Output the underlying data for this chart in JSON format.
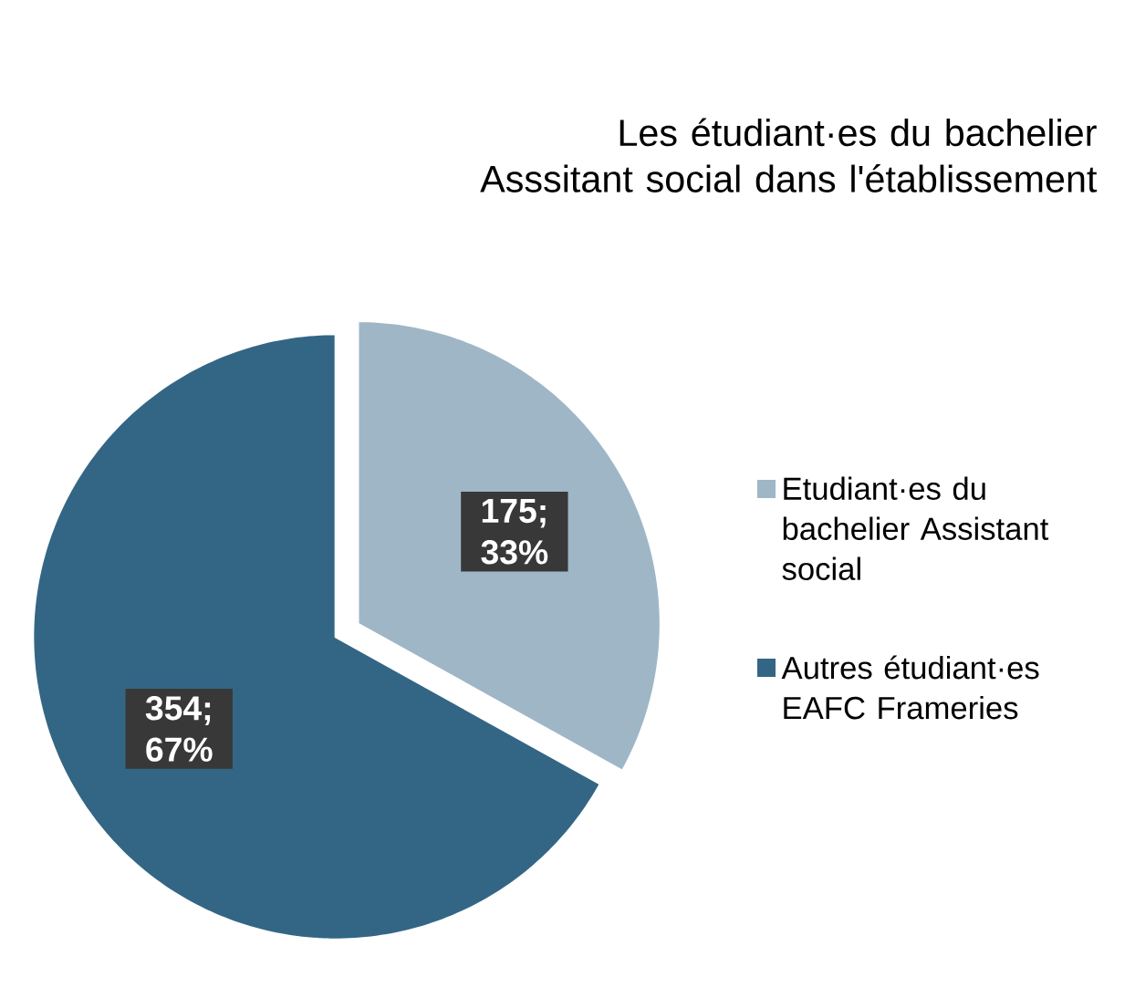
{
  "chart_data": {
    "type": "pie",
    "title": "Les étudiant·es du bachelier Asssitant social dans l'établissement",
    "categories": [
      "Etudiant·es du bachelier Assistant social",
      "Autres étudiant·es EAFC Frameries"
    ],
    "values": [
      175,
      354
    ],
    "colors": [
      "#9fb6c6",
      "#336685"
    ],
    "value_labels": [
      "175; 33%",
      "354; 67%"
    ],
    "legend": "right"
  }
}
